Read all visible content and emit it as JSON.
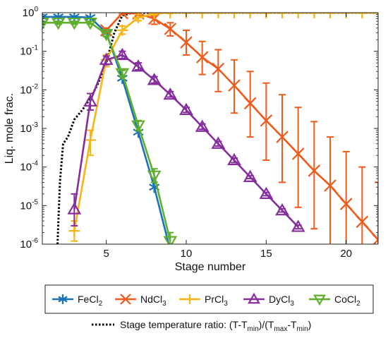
{
  "chart_data": {
    "type": "line",
    "xlabel": "Stage number",
    "ylabel": "Liq. mole frac.",
    "xlim": [
      1,
      22
    ],
    "ylim": [
      1e-06,
      1
    ],
    "yscale": "log",
    "x_ticks": [
      5,
      10,
      15,
      20
    ],
    "y_ticks": [
      {
        "base": "10",
        "exp": "0"
      },
      {
        "base": "10",
        "exp": "-1"
      },
      {
        "base": "10",
        "exp": "-2"
      },
      {
        "base": "10",
        "exp": "-3"
      },
      {
        "base": "10",
        "exp": "-4"
      },
      {
        "base": "10",
        "exp": "-5"
      },
      {
        "base": "10",
        "exp": "-6"
      }
    ],
    "grid": false,
    "legend_placement": "below",
    "series": [
      {
        "key": "fecl2",
        "name": [
          "FeCl",
          "2"
        ],
        "color": "#1a73b7",
        "marker": "asterisk",
        "x": [
          1,
          2,
          3,
          4,
          5,
          6,
          7,
          8,
          9
        ],
        "y": [
          0.78,
          0.78,
          0.78,
          0.75,
          0.3,
          0.02,
          0.0008,
          3e-05,
          7e-07
        ],
        "err_low": [],
        "err_high": []
      },
      {
        "key": "ndcl3",
        "name": [
          "NdCl",
          "3"
        ],
        "color": "#f05a1a",
        "marker": "x",
        "x": [
          5,
          6,
          7,
          8,
          9,
          10,
          11,
          12,
          13,
          14,
          15,
          16,
          17,
          18,
          19,
          20,
          21,
          22
        ],
        "y": [
          0.35,
          0.97,
          0.95,
          0.7,
          0.38,
          0.17,
          0.07,
          0.035,
          0.013,
          0.0045,
          0.0016,
          0.0006,
          0.00022,
          8e-05,
          3.3e-05,
          1.1e-05,
          3.8e-06,
          1.3e-06
        ],
        "err_low": [
          0.3,
          0.9,
          0.85,
          0.5,
          0.25,
          0.08,
          0.025,
          0.009,
          0.0025,
          0.0006,
          0.00015,
          4e-05,
          9e-06,
          2.5e-06,
          9e-07,
          4e-07,
          1.5e-07,
          5e-08
        ],
        "err_high": [
          0.4,
          1.0,
          1.0,
          0.85,
          0.55,
          0.35,
          0.18,
          0.11,
          0.06,
          0.03,
          0.015,
          0.0075,
          0.0035,
          0.0015,
          0.0006,
          0.00025,
          0.0001,
          4e-05
        ]
      },
      {
        "key": "prcl3",
        "name": [
          "PrCl",
          "3"
        ],
        "color": "#f7b416",
        "marker": "plus",
        "x": [
          3,
          4,
          5,
          6,
          7,
          8,
          9,
          10,
          11,
          12,
          13,
          14,
          15,
          16,
          17,
          18,
          19,
          20,
          21,
          22
        ],
        "y": [
          2.2e-06,
          0.0005,
          0.06,
          0.35,
          0.75,
          0.95,
          1.0,
          1.0,
          1.0,
          1.0,
          1.0,
          1.0,
          1.0,
          1.0,
          1.0,
          1.0,
          1.0,
          1.0,
          1.0,
          1.0
        ],
        "err_low": [
          1.2e-06,
          0.0002,
          0.04,
          0.28,
          0.62,
          0.88,
          0.95,
          0.97,
          0.97,
          0.97,
          0.97,
          0.97,
          0.97,
          0.97,
          0.97,
          0.97,
          0.97,
          0.97,
          0.97,
          0.97
        ],
        "err_high": [
          4e-06,
          0.0009,
          0.08,
          0.45,
          0.9,
          1.0,
          1.0,
          1.0,
          1.0,
          1.0,
          1.0,
          1.0,
          1.0,
          1.0,
          1.0,
          1.0,
          1.0,
          1.0,
          1.0,
          1.0
        ]
      },
      {
        "key": "dycl3",
        "name": [
          "DyCl",
          "3"
        ],
        "color": "#862d9e",
        "marker": "triangle-up",
        "x": [
          3,
          4,
          5,
          6,
          7,
          8,
          9,
          10,
          11,
          12,
          13,
          14,
          15,
          16,
          17
        ],
        "y": [
          8e-06,
          0.005,
          0.06,
          0.08,
          0.04,
          0.018,
          0.0075,
          0.003,
          0.0011,
          0.0004,
          0.00015,
          5.5e-05,
          2e-05,
          7.5e-06,
          2.8e-06
        ],
        "err_low": [
          3e-06,
          0.003,
          0.045,
          0.065,
          0.033,
          0.015,
          0.0065,
          0.0026,
          0.00095,
          0.00035,
          0.00013,
          5e-05,
          1.8e-05,
          6.8e-06,
          2.5e-06
        ],
        "err_high": [
          2e-05,
          0.008,
          0.075,
          0.1,
          0.05,
          0.022,
          0.009,
          0.0035,
          0.0013,
          0.00046,
          0.00017,
          6e-05,
          2.2e-05,
          8.3e-06,
          3.1e-06
        ]
      },
      {
        "key": "cocl2",
        "name": [
          "CoCl",
          "2"
        ],
        "color": "#5fae2c",
        "marker": "triangle-down",
        "x": [
          1,
          2,
          3,
          4,
          5,
          6,
          7,
          8,
          9
        ],
        "y": [
          0.55,
          0.55,
          0.55,
          0.55,
          0.28,
          0.027,
          0.0012,
          6e-05,
          1.2e-06
        ],
        "err_low": [
          0.5,
          0.5,
          0.5,
          0.5,
          0.24,
          0.022,
          0.0009,
          4e-05,
          7e-07
        ],
        "err_high": [
          0.6,
          0.6,
          0.6,
          0.6,
          0.32,
          0.032,
          0.0016,
          9e-05,
          2e-06
        ]
      }
    ],
    "ratio_line": {
      "name_parts": [
        {
          "t": "Stage temperature ratio: (T-T",
          "s": "normal"
        },
        {
          "t": "min",
          "s": "sub"
        },
        {
          "t": ")/(T",
          "s": "normal"
        },
        {
          "t": "max",
          "s": "sub"
        },
        {
          "t": "-T",
          "s": "normal"
        },
        {
          "t": "min",
          "s": "sub"
        },
        {
          "t": ")",
          "s": "normal"
        }
      ],
      "color": "#000000",
      "style": "dotted",
      "x": [
        1.95,
        2.1,
        2.3,
        2.6,
        3.0,
        3.5,
        4.0,
        4.5,
        5.0,
        5.5,
        6.0,
        6.5,
        7.0,
        8.0,
        9.0,
        10.0,
        11.0,
        12.0,
        22.0
      ],
      "y": [
        1e-06,
        4e-05,
        0.0004,
        0.0006,
        0.0017,
        0.003,
        0.006,
        0.015,
        0.05,
        0.3,
        0.85,
        0.96,
        0.99,
        1.0,
        1.0,
        1.0,
        1.0,
        1.0,
        1.0
      ]
    }
  }
}
